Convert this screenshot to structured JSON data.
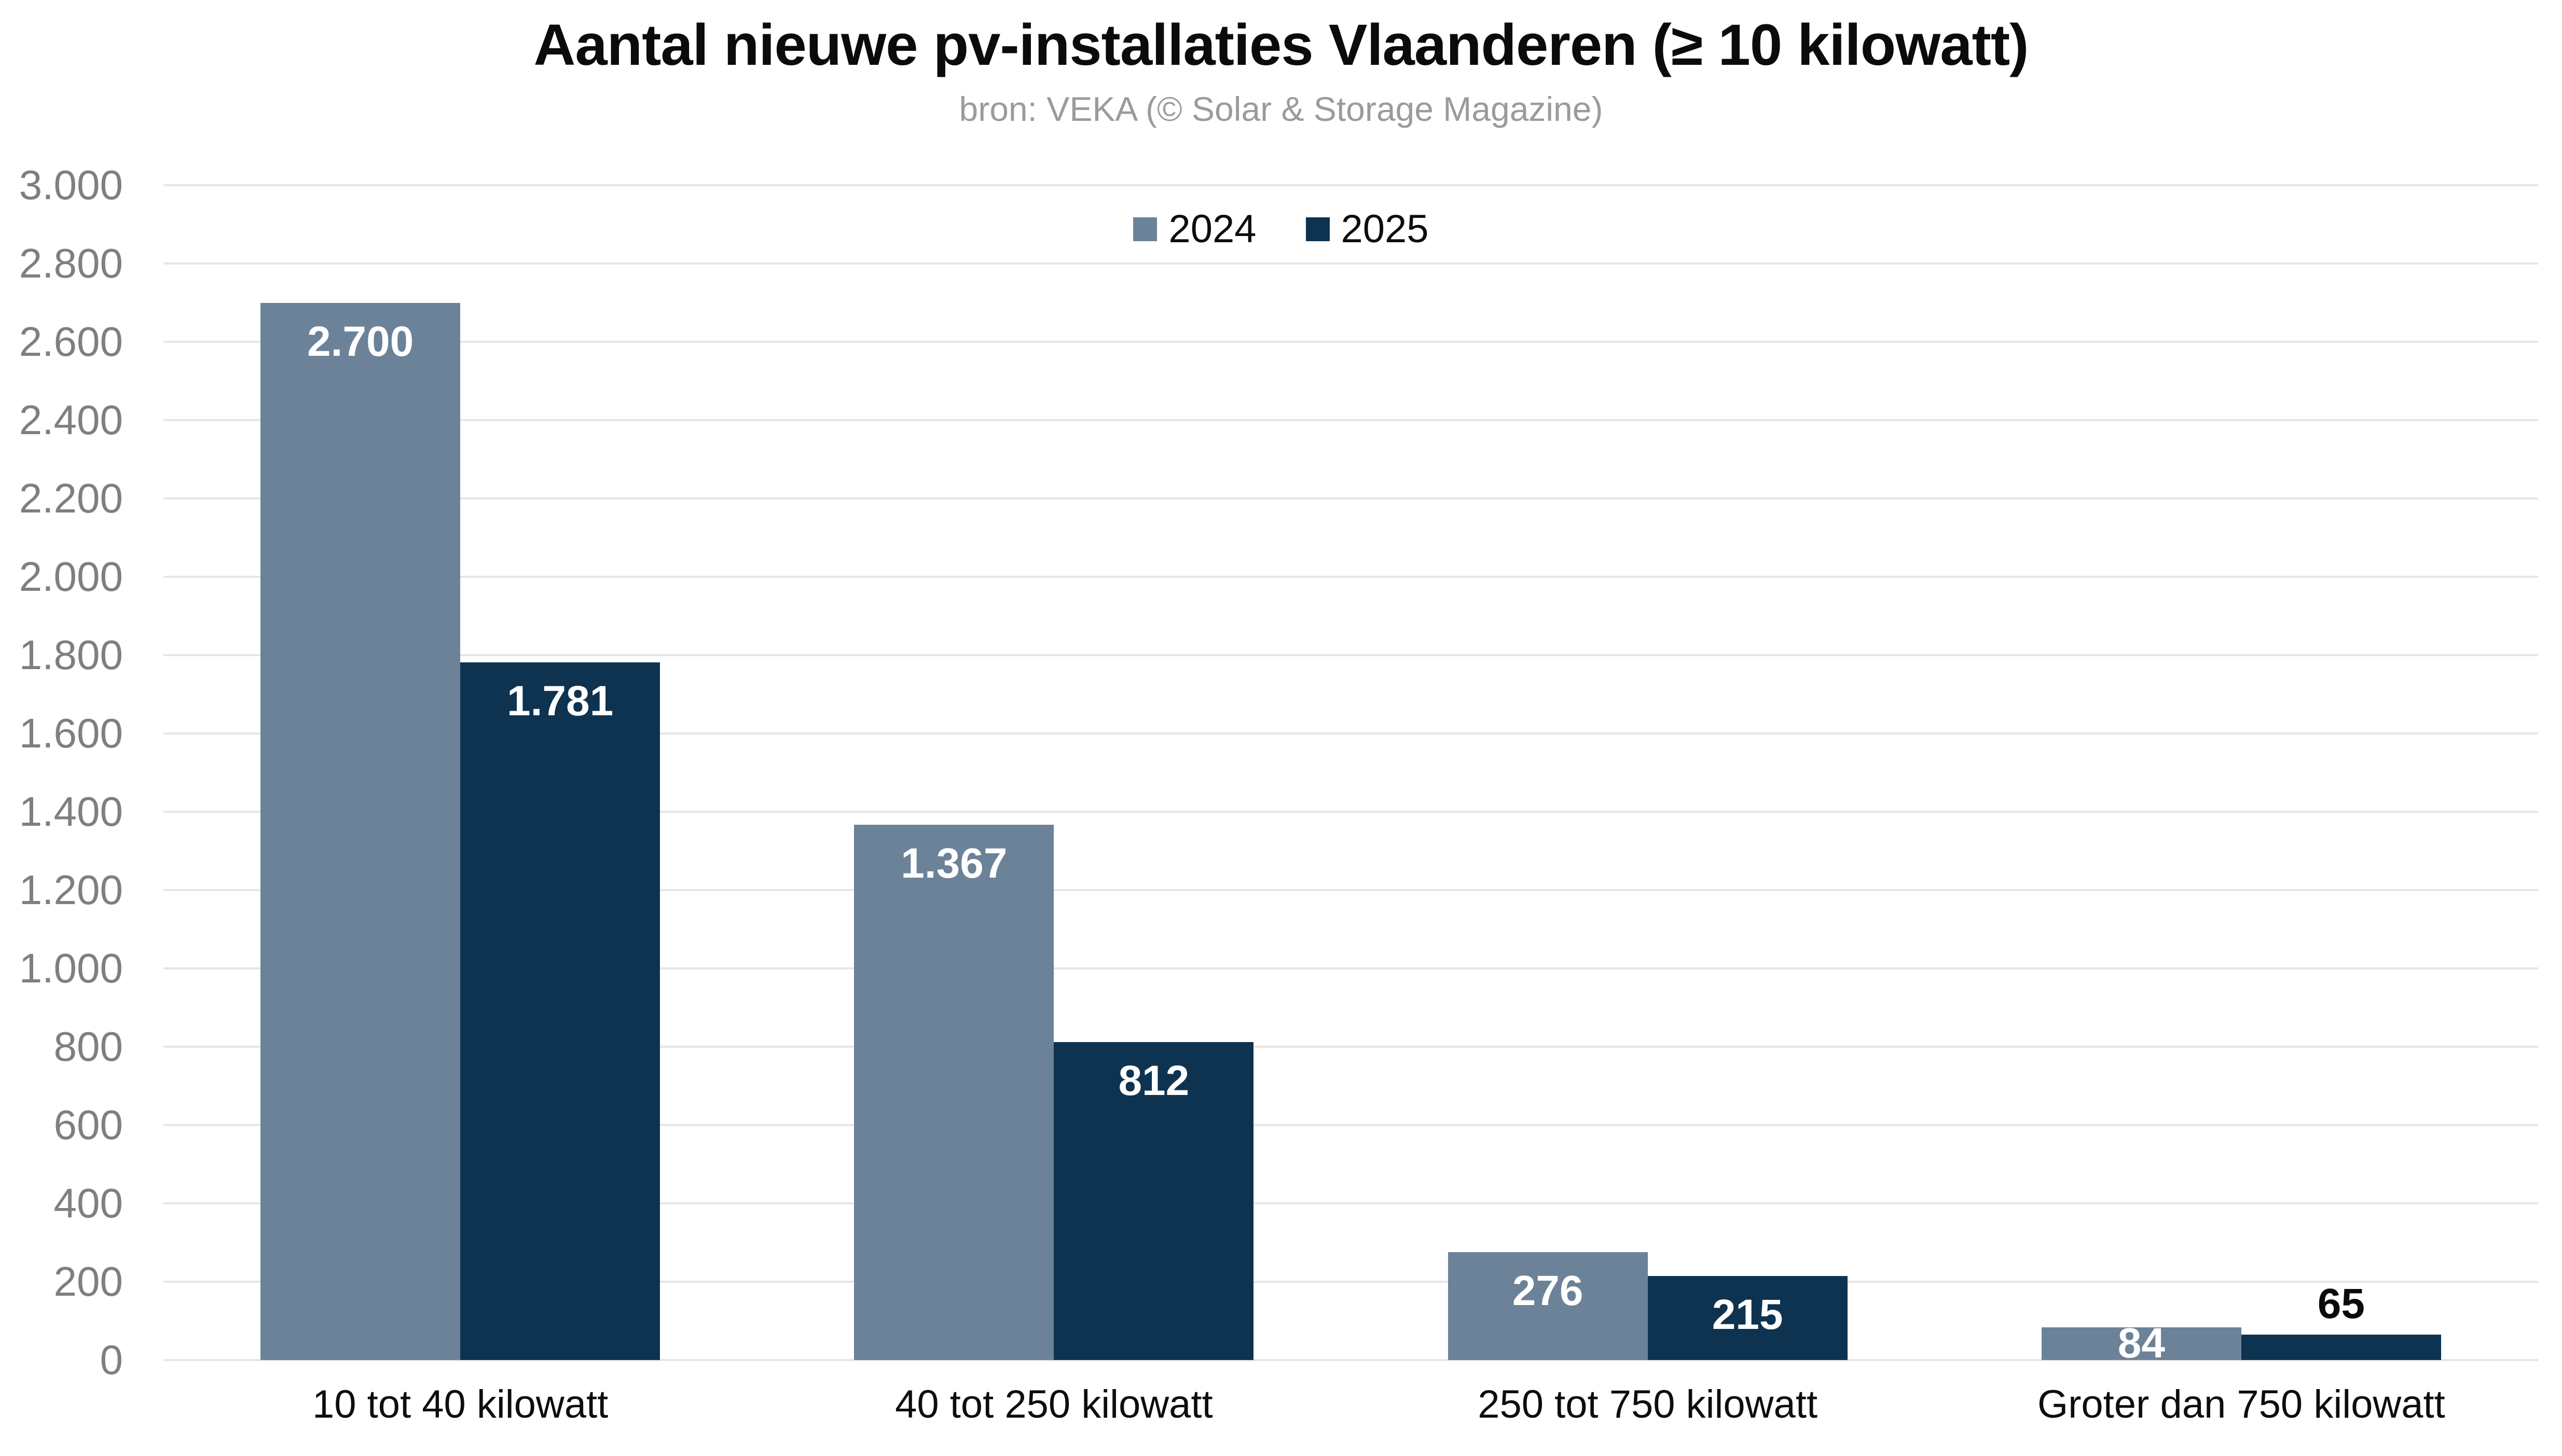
{
  "header": {
    "title": "Aantal nieuwe pv-installaties Vlaanderen (≥ 10 kilowatt)",
    "subtitle": "bron: VEKA (© Solar & Storage Magazine)"
  },
  "chart_data": {
    "type": "bar",
    "title": "Aantal nieuwe pv-installaties Vlaanderen (≥ 10 kilowatt)",
    "subtitle": "bron: VEKA (© Solar & Storage Magazine)",
    "categories": [
      "10 tot 40 kilowatt",
      "40 tot 250 kilowatt",
      "250 tot 750 kilowatt",
      "Groter dan 750 kilowatt"
    ],
    "series": [
      {
        "name": "2024",
        "color": "#6b8299",
        "values": [
          2700,
          1367,
          276,
          84
        ],
        "labels": [
          "2.700",
          "1.367",
          "276",
          "84"
        ],
        "label_placement": [
          "inside",
          "inside",
          "inside",
          "inside"
        ]
      },
      {
        "name": "2025",
        "color": "#0e3350",
        "values": [
          1781,
          812,
          215,
          65
        ],
        "labels": [
          "1.781",
          "812",
          "215",
          "65"
        ],
        "label_placement": [
          "inside",
          "inside",
          "inside",
          "above"
        ]
      }
    ],
    "xlabel": "",
    "ylabel": "",
    "ylim": [
      0,
      3000
    ],
    "ytick_step": 200,
    "ytick_labels": [
      "0",
      "200",
      "400",
      "600",
      "800",
      "1.000",
      "1.200",
      "1.400",
      "1.600",
      "1.800",
      "2.000",
      "2.200",
      "2.400",
      "2.600",
      "2.800",
      "3.000"
    ],
    "grid": "horizontal",
    "legend_position": "top-center",
    "colors": {
      "grid": "#e6e6e6",
      "tick_label": "#7f7f7f",
      "category_label": "#0d0d0d",
      "value_label_inside": "#ffffff",
      "value_label_above": "#0a0a0a",
      "title": "#0b0b0b",
      "subtitle": "#9b9b9b",
      "background": "#ffffff"
    }
  }
}
